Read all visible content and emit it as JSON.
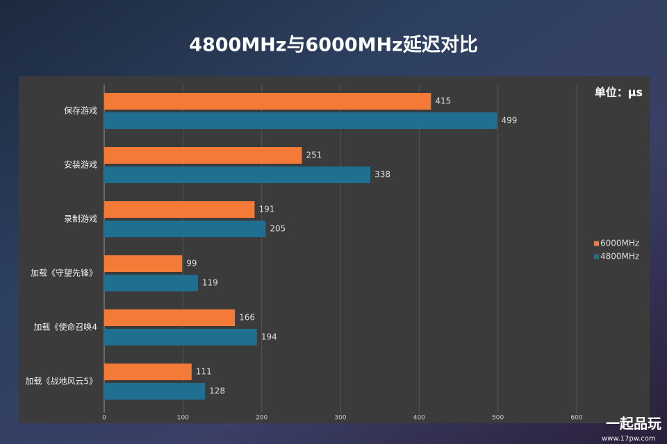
{
  "chart_data": {
    "type": "hbar",
    "title": "4800MHz与6000MHz延迟对比",
    "unit_label": "单位：μs",
    "categories": [
      "保存游戏",
      "安装游戏",
      "录制游戏",
      "加载《守望先锋》",
      "加载《使命召唤4",
      "加载《战地风云5》"
    ],
    "series": [
      {
        "name": "6000MHz",
        "color": "#f47a38",
        "values": [
          415,
          251,
          191,
          99,
          166,
          111
        ]
      },
      {
        "name": "4800MHz",
        "color": "#1f6f90",
        "values": [
          499,
          338,
          205,
          119,
          194,
          128
        ]
      }
    ],
    "xlim": [
      0,
      600
    ],
    "xticks": [
      0,
      100,
      200,
      300,
      400,
      500,
      600
    ],
    "grid": true,
    "legend": "right",
    "watermark": [
      "一起品玩",
      "www.17pw.com"
    ]
  }
}
